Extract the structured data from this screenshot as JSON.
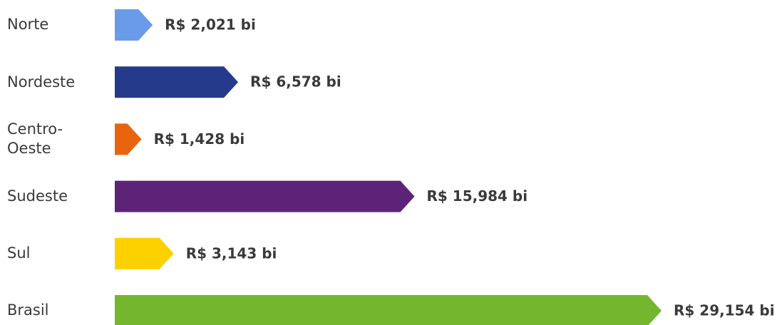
{
  "chart_data": {
    "type": "arrow-bar",
    "categories": [
      "Norte",
      "Nordeste",
      "Centro-Oeste",
      "Sudeste",
      "Sul",
      "Brasil"
    ],
    "values": [
      2.021,
      6.578,
      1.428,
      15.984,
      3.143,
      29.154
    ],
    "value_labels": [
      "R$ 2,021 bi",
      "R$ 6,578 bi",
      "R$ 1,428 bi",
      "R$ 15,984 bi",
      "R$ 3,143 bi",
      "R$ 29,154 bi"
    ],
    "colors": [
      "#6a9be8",
      "#253a8a",
      "#e8640e",
      "#5c2379",
      "#fdd000",
      "#74b72e"
    ]
  }
}
